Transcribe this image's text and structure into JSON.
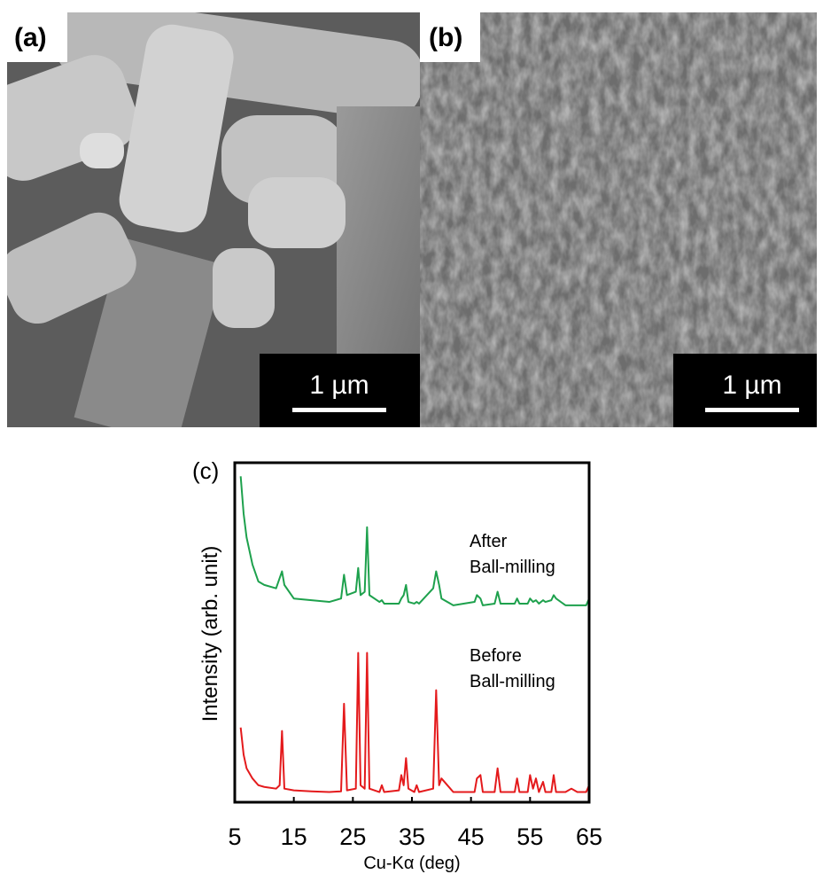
{
  "panels": [
    {
      "label": "(a)",
      "scale_bar": "1 µm"
    },
    {
      "label": "(b)",
      "scale_bar": "1 µm"
    }
  ],
  "chart_data": {
    "type": "line",
    "label": "(c)",
    "x_label": "Cu-Kα (deg)",
    "y_label": "Intensity (arb. unit)",
    "xlim": [
      5,
      65
    ],
    "xticks": [
      5,
      15,
      25,
      35,
      45,
      55,
      65
    ],
    "ylim": [
      0,
      100
    ],
    "x": [
      6,
      6.5,
      7,
      8,
      9,
      10,
      12,
      12.6,
      13,
      13.4,
      15,
      18,
      21,
      23,
      23.5,
      24,
      25.5,
      25.9,
      26.3,
      27,
      27.4,
      27.8,
      29.5,
      29.9,
      30.3,
      32.8,
      33.2,
      33.6,
      34,
      34.4,
      35.4,
      35.8,
      36.2,
      38.6,
      39.1,
      39.6,
      40,
      42,
      45.6,
      46,
      46.6,
      47,
      49,
      49.5,
      50,
      52.4,
      52.8,
      53.2,
      54.6,
      55,
      55.5,
      56,
      56.5,
      57.2,
      57.6,
      58.6,
      59,
      59.4,
      61,
      62,
      63,
      64.5,
      65
    ],
    "series": [
      {
        "name": [
          "After",
          "Ball-milling"
        ],
        "color": "#1ea14d",
        "values": [
          96,
          85,
          78,
          70,
          65,
          64,
          63,
          66,
          68,
          64,
          60,
          59.5,
          59,
          60,
          67,
          61,
          62,
          69,
          61,
          62,
          81,
          61,
          59,
          59.5,
          58.5,
          58.5,
          60,
          61,
          64,
          59,
          58.5,
          59,
          58.5,
          63,
          68,
          64,
          60,
          58,
          59,
          61,
          60,
          58,
          58.5,
          62,
          58.5,
          58.5,
          60,
          58.5,
          58.5,
          60,
          59,
          59.5,
          58.5,
          59.5,
          59,
          59.5,
          61,
          60,
          58,
          58,
          58,
          58,
          60
        ]
      },
      {
        "name": [
          "Before",
          "Ball-milling"
        ],
        "color": "#e41a1c",
        "values": [
          22,
          14,
          10,
          7,
          5,
          4.5,
          4,
          5,
          21,
          4,
          3.5,
          3.2,
          3,
          3.2,
          29,
          3.5,
          4,
          44,
          5,
          4,
          44,
          4,
          3,
          5,
          3,
          3.5,
          8,
          5,
          13,
          4,
          3,
          5,
          3,
          4,
          33,
          5,
          7,
          3,
          3,
          7,
          8,
          3,
          3,
          10,
          3,
          3,
          7,
          3,
          3,
          8,
          4,
          7,
          3,
          6,
          3,
          3,
          8,
          3,
          3,
          4,
          3,
          3,
          5
        ]
      }
    ]
  }
}
